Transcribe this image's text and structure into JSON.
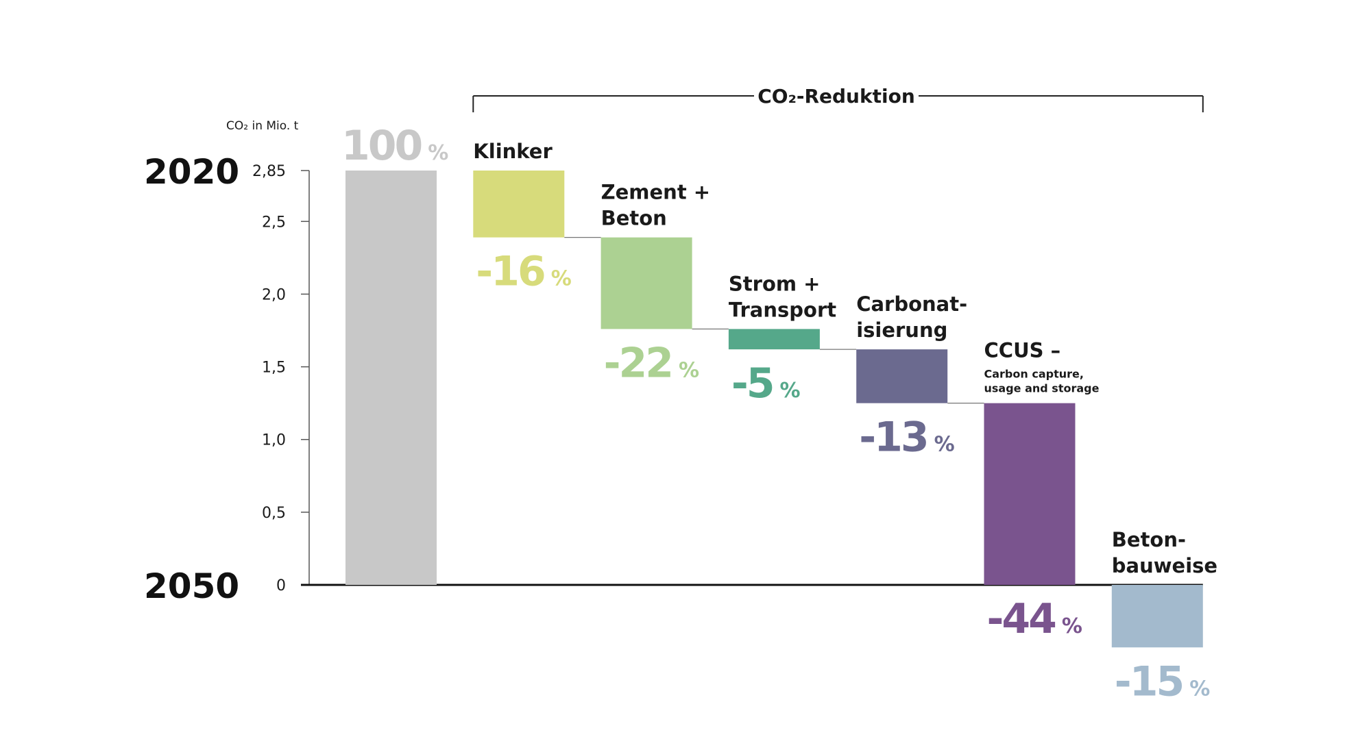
{
  "chart_data": {
    "type": "bar",
    "subtype": "waterfall",
    "ylabel": "CO₂ in Mio. t",
    "ylim": [
      0,
      2.85
    ],
    "y_ticks": [
      0,
      0.5,
      1.0,
      1.5,
      2.0,
      2.5,
      2.85
    ],
    "y_tick_labels": [
      "0",
      "0,5",
      "1,0",
      "1,5",
      "2,0",
      "2,5",
      "2,85"
    ],
    "year_labels": {
      "top": "2020",
      "bottom": "2050"
    },
    "bracket": {
      "title": "CO₂-Reduktion"
    },
    "grid": false,
    "legend": "none",
    "pct_sign": "%",
    "bars": [
      {
        "lines": [],
        "sub": [],
        "pct": "100",
        "value_start": 2.85,
        "value_end": 0,
        "color": "#c8c8c8"
      },
      {
        "lines": [
          "Klinker"
        ],
        "sub": [],
        "pct": "-16",
        "value_start": 2.85,
        "value_end": 2.39,
        "color": "#d7db7b"
      },
      {
        "lines": [
          "Zement +",
          "Beton"
        ],
        "sub": [],
        "pct": "-22",
        "value_start": 2.39,
        "value_end": 1.76,
        "color": "#acd192"
      },
      {
        "lines": [
          "Strom +",
          "Transport"
        ],
        "sub": [],
        "pct": "-5",
        "value_start": 1.76,
        "value_end": 1.62,
        "color": "#55a88a"
      },
      {
        "lines": [
          "Carbonat-",
          "isierung"
        ],
        "sub": [],
        "pct": "-13",
        "value_start": 1.62,
        "value_end": 1.25,
        "color": "#6b6a8f"
      },
      {
        "lines": [
          "CCUS –"
        ],
        "sub": [
          "Carbon capture,",
          "usage and storage"
        ],
        "pct": "-44",
        "value_start": 1.25,
        "value_end": 0,
        "color": "#7a548e"
      },
      {
        "lines": [
          "Beton-",
          "bauweise"
        ],
        "sub": [],
        "pct": "-15",
        "value_start": 0,
        "value_end": -0.43,
        "color": "#a3bacd"
      }
    ]
  }
}
